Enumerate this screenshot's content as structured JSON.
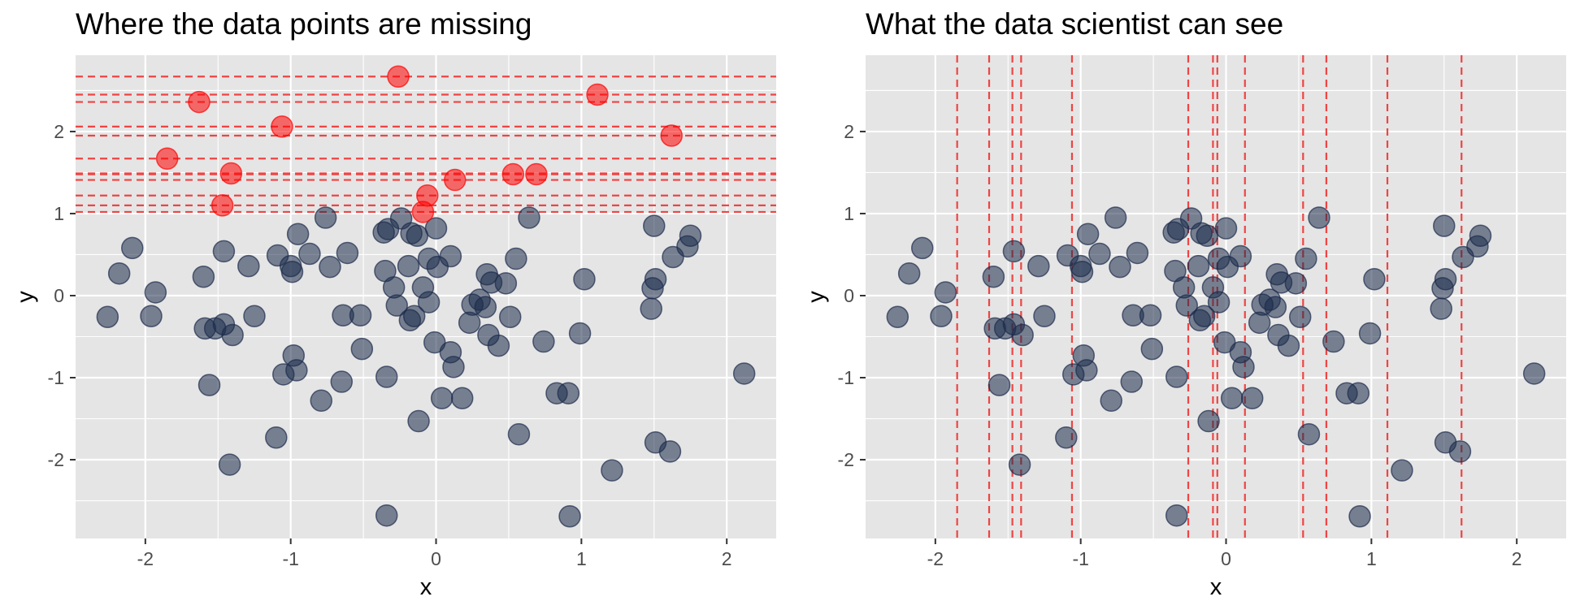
{
  "colors": {
    "panel_background": "#e5e5e5",
    "grid_line": "#ffffff",
    "observed_point": "#1c2b4b",
    "missing_point": "#ff0000",
    "missing_line": "#ef4444"
  },
  "chart_data": [
    {
      "type": "scatter",
      "title": "Where the data points are missing",
      "xlabel": "x",
      "ylabel": "y",
      "xlim": [
        -2.48,
        2.34
      ],
      "ylim": [
        -2.96,
        2.93
      ],
      "xticks": [
        -2,
        -1,
        0,
        1,
        2
      ],
      "yticks": [
        -2,
        -1,
        0,
        1,
        2
      ],
      "xtick_labels": [
        "-2",
        "-1",
        "0",
        "1",
        "2"
      ],
      "ytick_labels": [
        "-2",
        "-1",
        "0",
        "1",
        "2"
      ],
      "grid": true,
      "missing_reference_lines": "horizontal dashed red lines at each missing point's y value",
      "series": [
        {
          "role": "observed",
          "points": [
            [
              -2.26,
              -0.26
            ],
            [
              -2.18,
              0.27
            ],
            [
              -2.09,
              0.58
            ],
            [
              -1.96,
              -0.25
            ],
            [
              -1.93,
              0.04
            ],
            [
              -1.6,
              0.23
            ],
            [
              -1.59,
              -0.4
            ],
            [
              -1.56,
              -1.09
            ],
            [
              -1.52,
              -0.4
            ],
            [
              -1.46,
              -0.35
            ],
            [
              -1.46,
              0.54
            ],
            [
              -1.42,
              -2.06
            ],
            [
              -1.4,
              -0.48
            ],
            [
              -1.29,
              0.36
            ],
            [
              -1.25,
              -0.25
            ],
            [
              -1.1,
              -1.73
            ],
            [
              -1.09,
              0.49
            ],
            [
              -1.05,
              -0.96
            ],
            [
              -1.0,
              0.36
            ],
            [
              -0.99,
              0.29
            ],
            [
              -0.98,
              -0.73
            ],
            [
              -0.96,
              -0.91
            ],
            [
              -0.95,
              0.75
            ],
            [
              -0.87,
              0.51
            ],
            [
              -0.79,
              -1.28
            ],
            [
              -0.76,
              0.95
            ],
            [
              -0.73,
              0.35
            ],
            [
              -0.65,
              -1.05
            ],
            [
              -0.64,
              -0.24
            ],
            [
              -0.61,
              0.52
            ],
            [
              -0.52,
              -0.24
            ],
            [
              -0.51,
              -0.65
            ],
            [
              -0.36,
              0.77
            ],
            [
              -0.35,
              0.3
            ],
            [
              -0.34,
              -0.99
            ],
            [
              -0.34,
              -2.68
            ],
            [
              -0.33,
              0.81
            ],
            [
              -0.29,
              0.1
            ],
            [
              -0.27,
              -0.12
            ],
            [
              -0.24,
              0.94
            ],
            [
              -0.19,
              0.36
            ],
            [
              -0.18,
              -0.3
            ],
            [
              -0.17,
              0.76
            ],
            [
              -0.15,
              -0.25
            ],
            [
              -0.13,
              0.73
            ],
            [
              -0.12,
              -1.53
            ],
            [
              -0.09,
              0.1
            ],
            [
              -0.05,
              -0.08
            ],
            [
              -0.05,
              0.45
            ],
            [
              -0.01,
              -0.57
            ],
            [
              0.0,
              0.82
            ],
            [
              0.01,
              0.35
            ],
            [
              0.04,
              -1.25
            ],
            [
              0.1,
              -0.69
            ],
            [
              0.1,
              0.48
            ],
            [
              0.12,
              -0.87
            ],
            [
              0.18,
              -1.25
            ],
            [
              0.23,
              -0.33
            ],
            [
              0.25,
              -0.11
            ],
            [
              0.3,
              -0.05
            ],
            [
              0.34,
              -0.14
            ],
            [
              0.35,
              0.26
            ],
            [
              0.36,
              -0.48
            ],
            [
              0.38,
              0.16
            ],
            [
              0.43,
              -0.61
            ],
            [
              0.48,
              0.15
            ],
            [
              0.51,
              -0.26
            ],
            [
              0.55,
              0.45
            ],
            [
              0.57,
              -1.69
            ],
            [
              0.64,
              0.95
            ],
            [
              0.74,
              -0.56
            ],
            [
              0.83,
              -1.19
            ],
            [
              0.91,
              -1.19
            ],
            [
              0.92,
              -2.69
            ],
            [
              0.99,
              -0.46
            ],
            [
              1.02,
              0.2
            ],
            [
              1.21,
              -2.13
            ],
            [
              1.48,
              -0.16
            ],
            [
              1.49,
              0.09
            ],
            [
              1.5,
              0.85
            ],
            [
              1.51,
              0.2
            ],
            [
              1.51,
              -1.79
            ],
            [
              1.61,
              -1.9
            ],
            [
              1.63,
              0.47
            ],
            [
              1.73,
              0.6
            ],
            [
              1.75,
              0.73
            ],
            [
              2.12,
              -0.95
            ]
          ]
        },
        {
          "role": "missing",
          "points": [
            [
              -1.85,
              1.67
            ],
            [
              -1.63,
              2.36
            ],
            [
              -1.47,
              1.1
            ],
            [
              -1.41,
              1.49
            ],
            [
              -1.06,
              2.06
            ],
            [
              -0.26,
              2.67
            ],
            [
              -0.09,
              1.02
            ],
            [
              -0.06,
              1.22
            ],
            [
              0.13,
              1.41
            ],
            [
              0.53,
              1.48
            ],
            [
              0.69,
              1.48
            ],
            [
              1.11,
              2.45
            ],
            [
              1.62,
              1.95
            ]
          ]
        }
      ]
    },
    {
      "type": "scatter",
      "title": "What the data scientist can see",
      "xlabel": "x",
      "ylabel": "y",
      "xlim": [
        -2.48,
        2.34
      ],
      "ylim": [
        -2.96,
        2.93
      ],
      "xticks": [
        -2,
        -1,
        0,
        1,
        2
      ],
      "yticks": [
        -2,
        -1,
        0,
        1,
        2
      ],
      "xtick_labels": [
        "-2",
        "-1",
        "0",
        "1",
        "2"
      ],
      "ytick_labels": [
        "-2",
        "-1",
        "0",
        "1",
        "2"
      ],
      "grid": true,
      "missing_reference_lines": "vertical dashed red lines at each missing point's x value",
      "series": [
        {
          "role": "observed",
          "points": "same as observed points in first chart"
        },
        {
          "role": "missing",
          "x_only": [
            -1.85,
            -1.63,
            -1.47,
            -1.41,
            -1.06,
            -0.26,
            -0.09,
            -0.06,
            0.13,
            0.53,
            0.69,
            1.11,
            1.62
          ]
        }
      ]
    }
  ]
}
